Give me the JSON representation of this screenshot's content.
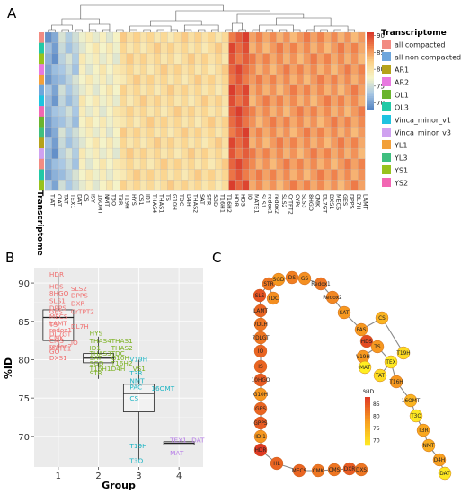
{
  "panels": {
    "a": "A",
    "b": "B",
    "c": "C"
  },
  "heatmap": {
    "rows": 15,
    "columns": [
      "TIAT",
      "CIAT",
      "TAT",
      "TEX1",
      "DAT",
      "CS",
      "ISY",
      "16OMT",
      "NMT",
      "T3O",
      "T3R",
      "T19H",
      "HYS",
      "CS1",
      "ID1",
      "THAS4",
      "THAS1",
      "TS",
      "G10H",
      "TDC",
      "D4H",
      "THAS2",
      "SAT",
      "STR",
      "SGD",
      "T16H1",
      "T16H2",
      "HDR",
      "HDS",
      "IO",
      "MATE1",
      "SLS1",
      "redox1",
      "redox2",
      "SLS2",
      "CrTPT2",
      "CYPs",
      "SLS3",
      "8HGO",
      "CMK",
      "DL7GT",
      "DXS1",
      "MECS",
      "GES",
      "DPPS",
      "DL7H",
      "LAMT"
    ],
    "row_label": "Transcriptome",
    "colorbar_ticks": [
      90,
      85,
      80,
      75,
      70
    ],
    "legend_title": "Transcriptome",
    "legend": [
      {
        "label": "all compacted",
        "color": "#f28b82"
      },
      {
        "label": "all non compacted",
        "color": "#6ea6dc"
      },
      {
        "label": "AR1",
        "color": "#b5a21a"
      },
      {
        "label": "AR2",
        "color": "#e879e0"
      },
      {
        "label": "OL1",
        "color": "#6ab42d"
      },
      {
        "label": "OL3",
        "color": "#22c9a6"
      },
      {
        "label": "Vinca_minor_v1",
        "color": "#1ec3e0"
      },
      {
        "label": "Vinca_minor_v3",
        "color": "#cfa1f0"
      },
      {
        "label": "YL1",
        "color": "#f2a03a"
      },
      {
        "label": "YL3",
        "color": "#3fbf7f"
      },
      {
        "label": "YS1",
        "color": "#98c21d"
      },
      {
        "label": "YS2",
        "color": "#f266b3"
      }
    ]
  },
  "chart_data": {
    "type": "box",
    "xlabel": "Group",
    "ylabel": "%ID",
    "categories": [
      "1",
      "2",
      "3",
      "4"
    ],
    "yticks": [
      70,
      75,
      80,
      85,
      90
    ],
    "ylim": [
      66,
      92
    ],
    "boxes": [
      {
        "group": "1",
        "q1": 82.5,
        "median": 85.5,
        "q3": 86.5,
        "whisker_low": 81,
        "whisker_high": 91
      },
      {
        "group": "2",
        "q1": 79.6,
        "median": 80.2,
        "q3": 80.8,
        "whisker_low": 77.5,
        "whisker_high": 83
      },
      {
        "group": "3",
        "q1": 73.2,
        "median": 75.6,
        "q3": 76.8,
        "whisker_low": 67,
        "whisker_high": 80
      },
      {
        "group": "4",
        "q1": 68.9,
        "median": 69.1,
        "q3": 69.3,
        "whisker_low": 68.9,
        "whisker_high": 69.3
      }
    ],
    "labels": [
      {
        "text": "HDR",
        "group": 1,
        "y": 91.2,
        "color": "#f06e6e"
      },
      {
        "text": "HDS",
        "group": 1,
        "y": 89.6,
        "color": "#f06e6e"
      },
      {
        "text": "SLS2",
        "group": 1,
        "y": 89.3,
        "color": "#f06e6e"
      },
      {
        "text": "8HGO",
        "group": 1,
        "y": 88.7,
        "color": "#f06e6e"
      },
      {
        "text": "DPPS",
        "group": 1,
        "y": 88.4,
        "color": "#f06e6e"
      },
      {
        "text": "SLS1",
        "group": 1,
        "y": 87.7,
        "color": "#f06e6e"
      },
      {
        "text": "DXR",
        "group": 1,
        "y": 87.4,
        "color": "#f06e6e"
      },
      {
        "text": "DPPS",
        "group": 1,
        "y": 86.8,
        "color": "#f06e6e"
      },
      {
        "text": "GES",
        "group": 1,
        "y": 86.3,
        "color": "#f06e6e"
      },
      {
        "text": "CrTPT2",
        "group": 1,
        "y": 86.3,
        "color": "#f06e6e"
      },
      {
        "text": "MECS",
        "group": 1,
        "y": 85.7,
        "color": "#f06e6e"
      },
      {
        "text": "LAMT",
        "group": 1,
        "y": 84.8,
        "color": "#f06e6e"
      },
      {
        "text": "TS",
        "group": 1,
        "y": 84.6,
        "color": "#f06e6e"
      },
      {
        "text": "DL7H",
        "group": 1,
        "y": 84.4,
        "color": "#f06e6e"
      },
      {
        "text": "redox1",
        "group": 1,
        "y": 83.9,
        "color": "#f06e6e"
      },
      {
        "text": "DL7GT",
        "group": 1,
        "y": 83.4,
        "color": "#f06e6e"
      },
      {
        "text": "CMK",
        "group": 1,
        "y": 82.9,
        "color": "#f06e6e"
      },
      {
        "text": "CMS",
        "group": 1,
        "y": 82.5,
        "color": "#f06e6e"
      },
      {
        "text": "IO",
        "group": 1,
        "y": 82.3,
        "color": "#f06e6e"
      },
      {
        "text": "redox2",
        "group": 1,
        "y": 81.8,
        "color": "#f06e6e"
      },
      {
        "text": "MATE1",
        "group": 1,
        "y": 81.5,
        "color": "#f06e6e"
      },
      {
        "text": "GO",
        "group": 1,
        "y": 81.1,
        "color": "#f06e6e"
      },
      {
        "text": "DXS1",
        "group": 1,
        "y": 80.3,
        "color": "#f06e6e"
      },
      {
        "text": "HYS",
        "group": 2,
        "y": 83.5,
        "color": "#7ab01e"
      },
      {
        "text": "THAS4",
        "group": 2,
        "y": 82.5,
        "color": "#7ab01e"
      },
      {
        "text": "THAS1",
        "group": 2,
        "y": 82.5,
        "color": "#7ab01e"
      },
      {
        "text": "ID1",
        "group": 2,
        "y": 81.6,
        "color": "#7ab01e"
      },
      {
        "text": "THAS2",
        "group": 2,
        "y": 81.6,
        "color": "#7ab01e"
      },
      {
        "text": "THAS3",
        "group": 2,
        "y": 80.9,
        "color": "#7ab01e"
      },
      {
        "text": "TDC",
        "group": 2,
        "y": 80.9,
        "color": "#7ab01e"
      },
      {
        "text": "SAT",
        "group": 2,
        "y": 80.3,
        "color": "#7ab01e"
      },
      {
        "text": "G10H",
        "group": 2,
        "y": 80.3,
        "color": "#7ab01e"
      },
      {
        "text": "SGD",
        "group": 2,
        "y": 79.6,
        "color": "#7ab01e"
      },
      {
        "text": "T16H2",
        "group": 2,
        "y": 79.6,
        "color": "#7ab01e"
      },
      {
        "text": "T16H1",
        "group": 2,
        "y": 78.9,
        "color": "#7ab01e"
      },
      {
        "text": "D4H",
        "group": 2,
        "y": 78.9,
        "color": "#7ab01e"
      },
      {
        "text": "VS1",
        "group": 2,
        "y": 78.9,
        "color": "#7ab01e"
      },
      {
        "text": "STR",
        "group": 2,
        "y": 78.3,
        "color": "#7ab01e"
      },
      {
        "text": "V19H",
        "group": 3,
        "y": 80.1,
        "color": "#1eb5c4"
      },
      {
        "text": "T3R",
        "group": 3,
        "y": 78.3,
        "color": "#1eb5c4"
      },
      {
        "text": "NMT",
        "group": 3,
        "y": 77.3,
        "color": "#1eb5c4"
      },
      {
        "text": "PAC",
        "group": 3,
        "y": 76.5,
        "color": "#1eb5c4"
      },
      {
        "text": "16OMT",
        "group": 3,
        "y": 76.3,
        "color": "#1eb5c4"
      },
      {
        "text": "CS",
        "group": 3,
        "y": 75.0,
        "color": "#1eb5c4"
      },
      {
        "text": "T19H",
        "group": 3,
        "y": 68.8,
        "color": "#1eb5c4"
      },
      {
        "text": "T3O",
        "group": 3,
        "y": 66.9,
        "color": "#1eb5c4"
      },
      {
        "text": "TEX1",
        "group": 4,
        "y": 69.6,
        "color": "#b77ee8"
      },
      {
        "text": "DAT",
        "group": 4,
        "y": 69.6,
        "color": "#b77ee8"
      },
      {
        "text": "MAT",
        "group": 4,
        "y": 67.9,
        "color": "#b77ee8"
      }
    ]
  },
  "network": {
    "colorbar_title": "%ID",
    "colorbar_ticks": [
      85,
      80,
      75,
      70
    ],
    "nodes": [
      {
        "label": "STR",
        "v": 84
      },
      {
        "label": "SGD",
        "v": 80
      },
      {
        "label": "DS",
        "v": 83
      },
      {
        "label": "GS",
        "v": 81
      },
      {
        "label": "Redox1",
        "v": 84
      },
      {
        "label": "Redox2",
        "v": 82
      },
      {
        "label": "SAT",
        "v": 80
      },
      {
        "label": "SLS",
        "v": 88
      },
      {
        "label": "TDC",
        "v": 81
      },
      {
        "label": "LAMT",
        "v": 86
      },
      {
        "label": "7DLH",
        "v": 84
      },
      {
        "label": "7DLGT",
        "v": 84
      },
      {
        "label": "IO",
        "v": 86
      },
      {
        "label": "IS",
        "v": 86
      },
      {
        "label": "10HGO",
        "v": 87
      },
      {
        "label": "G10H",
        "v": 80
      },
      {
        "label": "GES",
        "v": 86
      },
      {
        "label": "GPPS",
        "v": 87
      },
      {
        "label": "IDI1",
        "v": 80
      },
      {
        "label": "HDR",
        "v": 91
      },
      {
        "label": "HL",
        "v": 86
      },
      {
        "label": "MECS",
        "v": 86
      },
      {
        "label": "CMK",
        "v": 84
      },
      {
        "label": "CMS",
        "v": 84
      },
      {
        "label": "DXR",
        "v": 87
      },
      {
        "label": "DXS",
        "v": 84
      },
      {
        "label": "PAS",
        "v": 80
      },
      {
        "label": "CS",
        "v": 76
      },
      {
        "label": "HDS",
        "v": 89
      },
      {
        "label": "TS",
        "v": 80
      },
      {
        "label": "V19H",
        "v": 80
      },
      {
        "label": "MAT",
        "v": 67
      },
      {
        "label": "T19H",
        "v": 70
      },
      {
        "label": "TEX",
        "v": 68
      },
      {
        "label": "TAT",
        "v": 70
      },
      {
        "label": "T16H",
        "v": 80
      },
      {
        "label": "16OMT",
        "v": 76
      },
      {
        "label": "T3O",
        "v": 68
      },
      {
        "label": "T3R",
        "v": 78
      },
      {
        "label": "NMT",
        "v": 77
      },
      {
        "label": "D4H",
        "v": 79
      },
      {
        "label": "DAT",
        "v": 68
      }
    ]
  }
}
